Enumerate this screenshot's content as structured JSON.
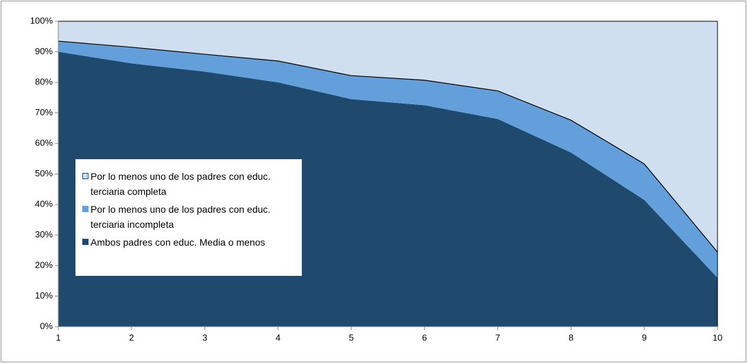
{
  "chart_data": {
    "type": "stacked_area",
    "x": [
      1,
      2,
      3,
      4,
      5,
      6,
      7,
      8,
      9,
      10
    ],
    "xlim": [
      1,
      10
    ],
    "xticks": [
      1,
      2,
      3,
      4,
      5,
      6,
      7,
      8,
      9,
      10
    ],
    "ylim": [
      0,
      100
    ],
    "yticks": [
      {
        "value": 0,
        "label": "0%"
      },
      {
        "value": 10,
        "label": "10%"
      },
      {
        "value": 20,
        "label": "20%"
      },
      {
        "value": 30,
        "label": "30%"
      },
      {
        "value": 40,
        "label": "40%"
      },
      {
        "value": 50,
        "label": "50%"
      },
      {
        "value": 60,
        "label": "60%"
      },
      {
        "value": 70,
        "label": "70%"
      },
      {
        "value": 80,
        "label": "80%"
      },
      {
        "value": 90,
        "label": "90%"
      },
      {
        "value": 100,
        "label": "100%"
      }
    ],
    "series": [
      {
        "name": "Ambos padres con educ. Media o menos",
        "color": "#1f4a6e",
        "values": [
          90,
          86.2,
          83.5,
          80,
          74.5,
          72.5,
          68,
          57,
          41.5,
          16
        ]
      },
      {
        "name": "Por lo menos uno de los padres con educ. terciaria incompleta",
        "color": "#629fdb",
        "values": [
          3.5,
          5.3,
          5.7,
          7,
          7.7,
          8.2,
          9.2,
          10.6,
          11.8,
          8.4
        ]
      },
      {
        "name": "Por lo menos uno de los padres con educ. terciaria completa",
        "color": "#cfdff0",
        "values": [
          6.5,
          8.5,
          10.8,
          13,
          17.8,
          19.3,
          22.8,
          32.4,
          46.7,
          75.6
        ]
      }
    ],
    "legend": "left"
  }
}
